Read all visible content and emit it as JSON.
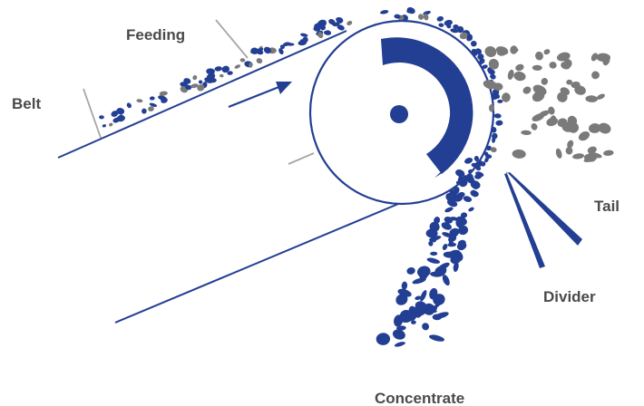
{
  "labels": {
    "feeding": "Feeding",
    "belt": "Belt",
    "tail": "Tail",
    "divider": "Divider",
    "concentrate": "Concentrate"
  },
  "colors": {
    "magnetic": "#233f93",
    "nonmagnetic": "#7a7a7a",
    "leader": "#a6a6a6",
    "background": "#ffffff"
  }
}
